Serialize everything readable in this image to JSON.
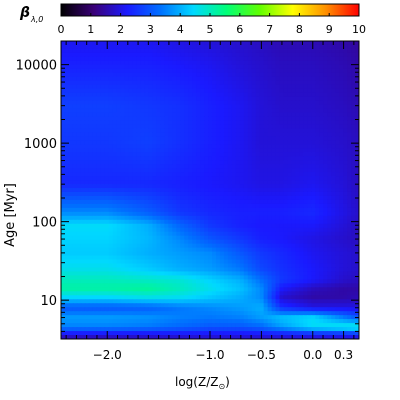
{
  "chart_data": {
    "type": "heatmap",
    "title": "",
    "colorbar": {
      "label": "β",
      "label_sub": "λ,0",
      "ticks": [
        "0",
        "1",
        "2",
        "3",
        "4",
        "5",
        "6",
        "7",
        "8",
        "9",
        "10"
      ],
      "range": [
        0,
        10
      ],
      "colormap": [
        "#000000",
        "#3a0078",
        "#1a1aff",
        "#0070ff",
        "#00d8ff",
        "#00ff78",
        "#60ff00",
        "#ffff00",
        "#ff9000",
        "#ff0000"
      ]
    },
    "x": {
      "label": "log(Z/Z",
      "label_suffix": ")",
      "sun_symbol": "⊙",
      "range": [
        -2.45,
        0.45
      ],
      "ticks": [
        {
          "value": -2.0,
          "label": "−2.0"
        },
        {
          "value": -1.0,
          "label": "−1.0"
        },
        {
          "value": -0.5,
          "label": "−0.5"
        },
        {
          "value": 0.0,
          "label": "0.0"
        },
        {
          "value": 0.3,
          "label": "0.3"
        }
      ],
      "minor_ticks": [
        -2.4,
        -2.3,
        -2.2,
        -2.1,
        -1.9,
        -1.8,
        -1.7,
        -1.6,
        -1.5,
        -1.4,
        -1.3,
        -1.2,
        -1.1,
        -0.9,
        -0.8,
        -0.7,
        -0.6,
        -0.4,
        -0.3,
        -0.2,
        -0.1,
        0.1,
        0.2,
        0.4
      ]
    },
    "y": {
      "label": "Age",
      "unit": "[Myr]",
      "scale": "log",
      "range": [
        3.2,
        20000
      ],
      "ticks": [
        {
          "value": 10,
          "label": "10"
        },
        {
          "value": 100,
          "label": "100"
        },
        {
          "value": 1000,
          "label": "1000"
        },
        {
          "value": 10000,
          "label": "10000"
        }
      ]
    },
    "metallicity_cols": [
      -2.45,
      -2.0,
      -1.6,
      -1.3,
      -1.0,
      -0.7,
      -0.5,
      -0.3,
      0.0,
      0.3,
      0.45
    ],
    "age_rows": [
      3.2,
      3.6,
      4.5,
      6,
      8,
      11,
      14,
      18,
      25,
      40,
      60,
      90,
      130,
      300,
      1000,
      3000,
      10000,
      20000
    ],
    "values": [
      [
        1.6,
        1.6,
        1.7,
        1.7,
        1.8,
        1.8,
        1.8,
        1.9,
        1.9,
        2.0,
        2.0
      ],
      [
        1.9,
        1.9,
        1.9,
        2.0,
        2.0,
        2.0,
        2.0,
        2.0,
        2.1,
        2.1,
        2.2
      ],
      [
        3.5,
        3.5,
        3.4,
        3.2,
        3.0,
        3.0,
        3.2,
        3.8,
        4.5,
        4.8,
        5.0
      ],
      [
        3.8,
        3.8,
        3.7,
        3.5,
        3.4,
        3.5,
        3.8,
        4.2,
        4.5,
        3.5,
        3.0
      ],
      [
        3.0,
        3.0,
        3.1,
        3.4,
        3.6,
        3.8,
        4.0,
        2.5,
        2.0,
        2.0,
        2.0
      ],
      [
        4.5,
        4.5,
        4.7,
        4.6,
        4.3,
        4.0,
        3.6,
        1.8,
        1.5,
        1.5,
        1.6
      ],
      [
        5.2,
        5.2,
        5.3,
        5.0,
        4.6,
        4.2,
        3.6,
        2.2,
        1.7,
        1.5,
        1.5
      ],
      [
        5.0,
        5.0,
        4.9,
        4.8,
        4.4,
        4.0,
        3.3,
        2.6,
        2.2,
        1.8,
        1.7
      ],
      [
        4.6,
        4.6,
        4.3,
        4.0,
        3.8,
        3.4,
        2.8,
        2.5,
        2.2,
        1.9,
        1.8
      ],
      [
        4.3,
        4.3,
        4.0,
        3.8,
        3.6,
        3.0,
        2.6,
        2.4,
        2.1,
        1.9,
        1.8
      ],
      [
        4.4,
        4.4,
        4.1,
        3.6,
        3.0,
        2.6,
        2.3,
        2.2,
        2.0,
        1.8,
        1.7
      ],
      [
        4.5,
        4.5,
        4.0,
        3.2,
        2.6,
        2.3,
        2.2,
        2.2,
        2.2,
        1.9,
        1.7
      ],
      [
        3.6,
        3.6,
        3.1,
        2.6,
        2.4,
        2.3,
        2.3,
        2.3,
        2.4,
        2.0,
        1.8
      ],
      [
        2.4,
        2.4,
        2.4,
        2.3,
        2.2,
        2.1,
        2.0,
        2.0,
        2.1,
        1.9,
        1.7
      ],
      [
        2.6,
        2.6,
        2.7,
        2.5,
        2.3,
        2.1,
        1.9,
        1.9,
        1.9,
        1.8,
        1.7
      ],
      [
        2.7,
        2.7,
        2.6,
        2.5,
        2.3,
        2.1,
        1.9,
        1.8,
        1.8,
        1.7,
        1.6
      ],
      [
        2.3,
        2.3,
        2.3,
        2.2,
        2.1,
        1.9,
        1.8,
        1.7,
        1.7,
        1.6,
        1.5
      ],
      [
        2.1,
        2.1,
        2.1,
        2.0,
        1.9,
        1.8,
        1.7,
        1.6,
        1.6,
        1.5,
        1.4
      ]
    ]
  }
}
